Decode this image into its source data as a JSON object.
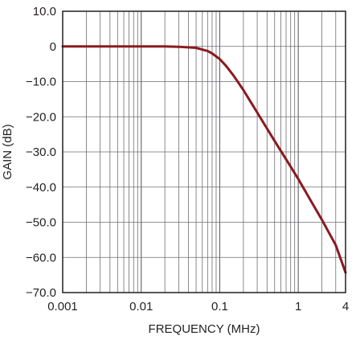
{
  "chart_data": {
    "type": "line",
    "title": "",
    "xlabel": "FREQUENCY (MHz)",
    "ylabel": "GAIN (dB)",
    "x_scale": "log",
    "xlim": [
      0.001,
      4
    ],
    "ylim": [
      -70,
      10
    ],
    "grid": true,
    "x_tick_values": [
      0.001,
      0.01,
      0.1,
      1,
      4
    ],
    "x_tick_labels": [
      "0.001",
      "0.01",
      "0.1",
      "1",
      "4"
    ],
    "y_tick_values": [
      10,
      0,
      -10,
      -20,
      -30,
      -40,
      -50,
      -60,
      -70
    ],
    "y_tick_labels": [
      "10.0",
      "0",
      "−10.0",
      "−20.0",
      "−30.0",
      "−40.0",
      "−50.0",
      "−60.0",
      "−70.0"
    ],
    "series": [
      {
        "color": "#8b1a1f",
        "x": [
          0.001,
          0.002,
          0.005,
          0.01,
          0.02,
          0.03,
          0.05,
          0.07,
          0.08,
          0.1,
          0.12,
          0.15,
          0.2,
          0.3,
          0.5,
          0.7,
          1,
          1.5,
          2,
          3,
          4
        ],
        "y": [
          0,
          0,
          0,
          0,
          0,
          -0.1,
          -0.4,
          -1.3,
          -2.0,
          -3.6,
          -5.5,
          -8.3,
          -12.4,
          -18.8,
          -26.9,
          -32.1,
          -37.7,
          -44.5,
          -49.3,
          -56.5,
          -64.3
        ]
      }
    ]
  },
  "colors": {
    "line": "#8b1a1f",
    "grid": "#6d6e70",
    "frame": "#231f20"
  }
}
